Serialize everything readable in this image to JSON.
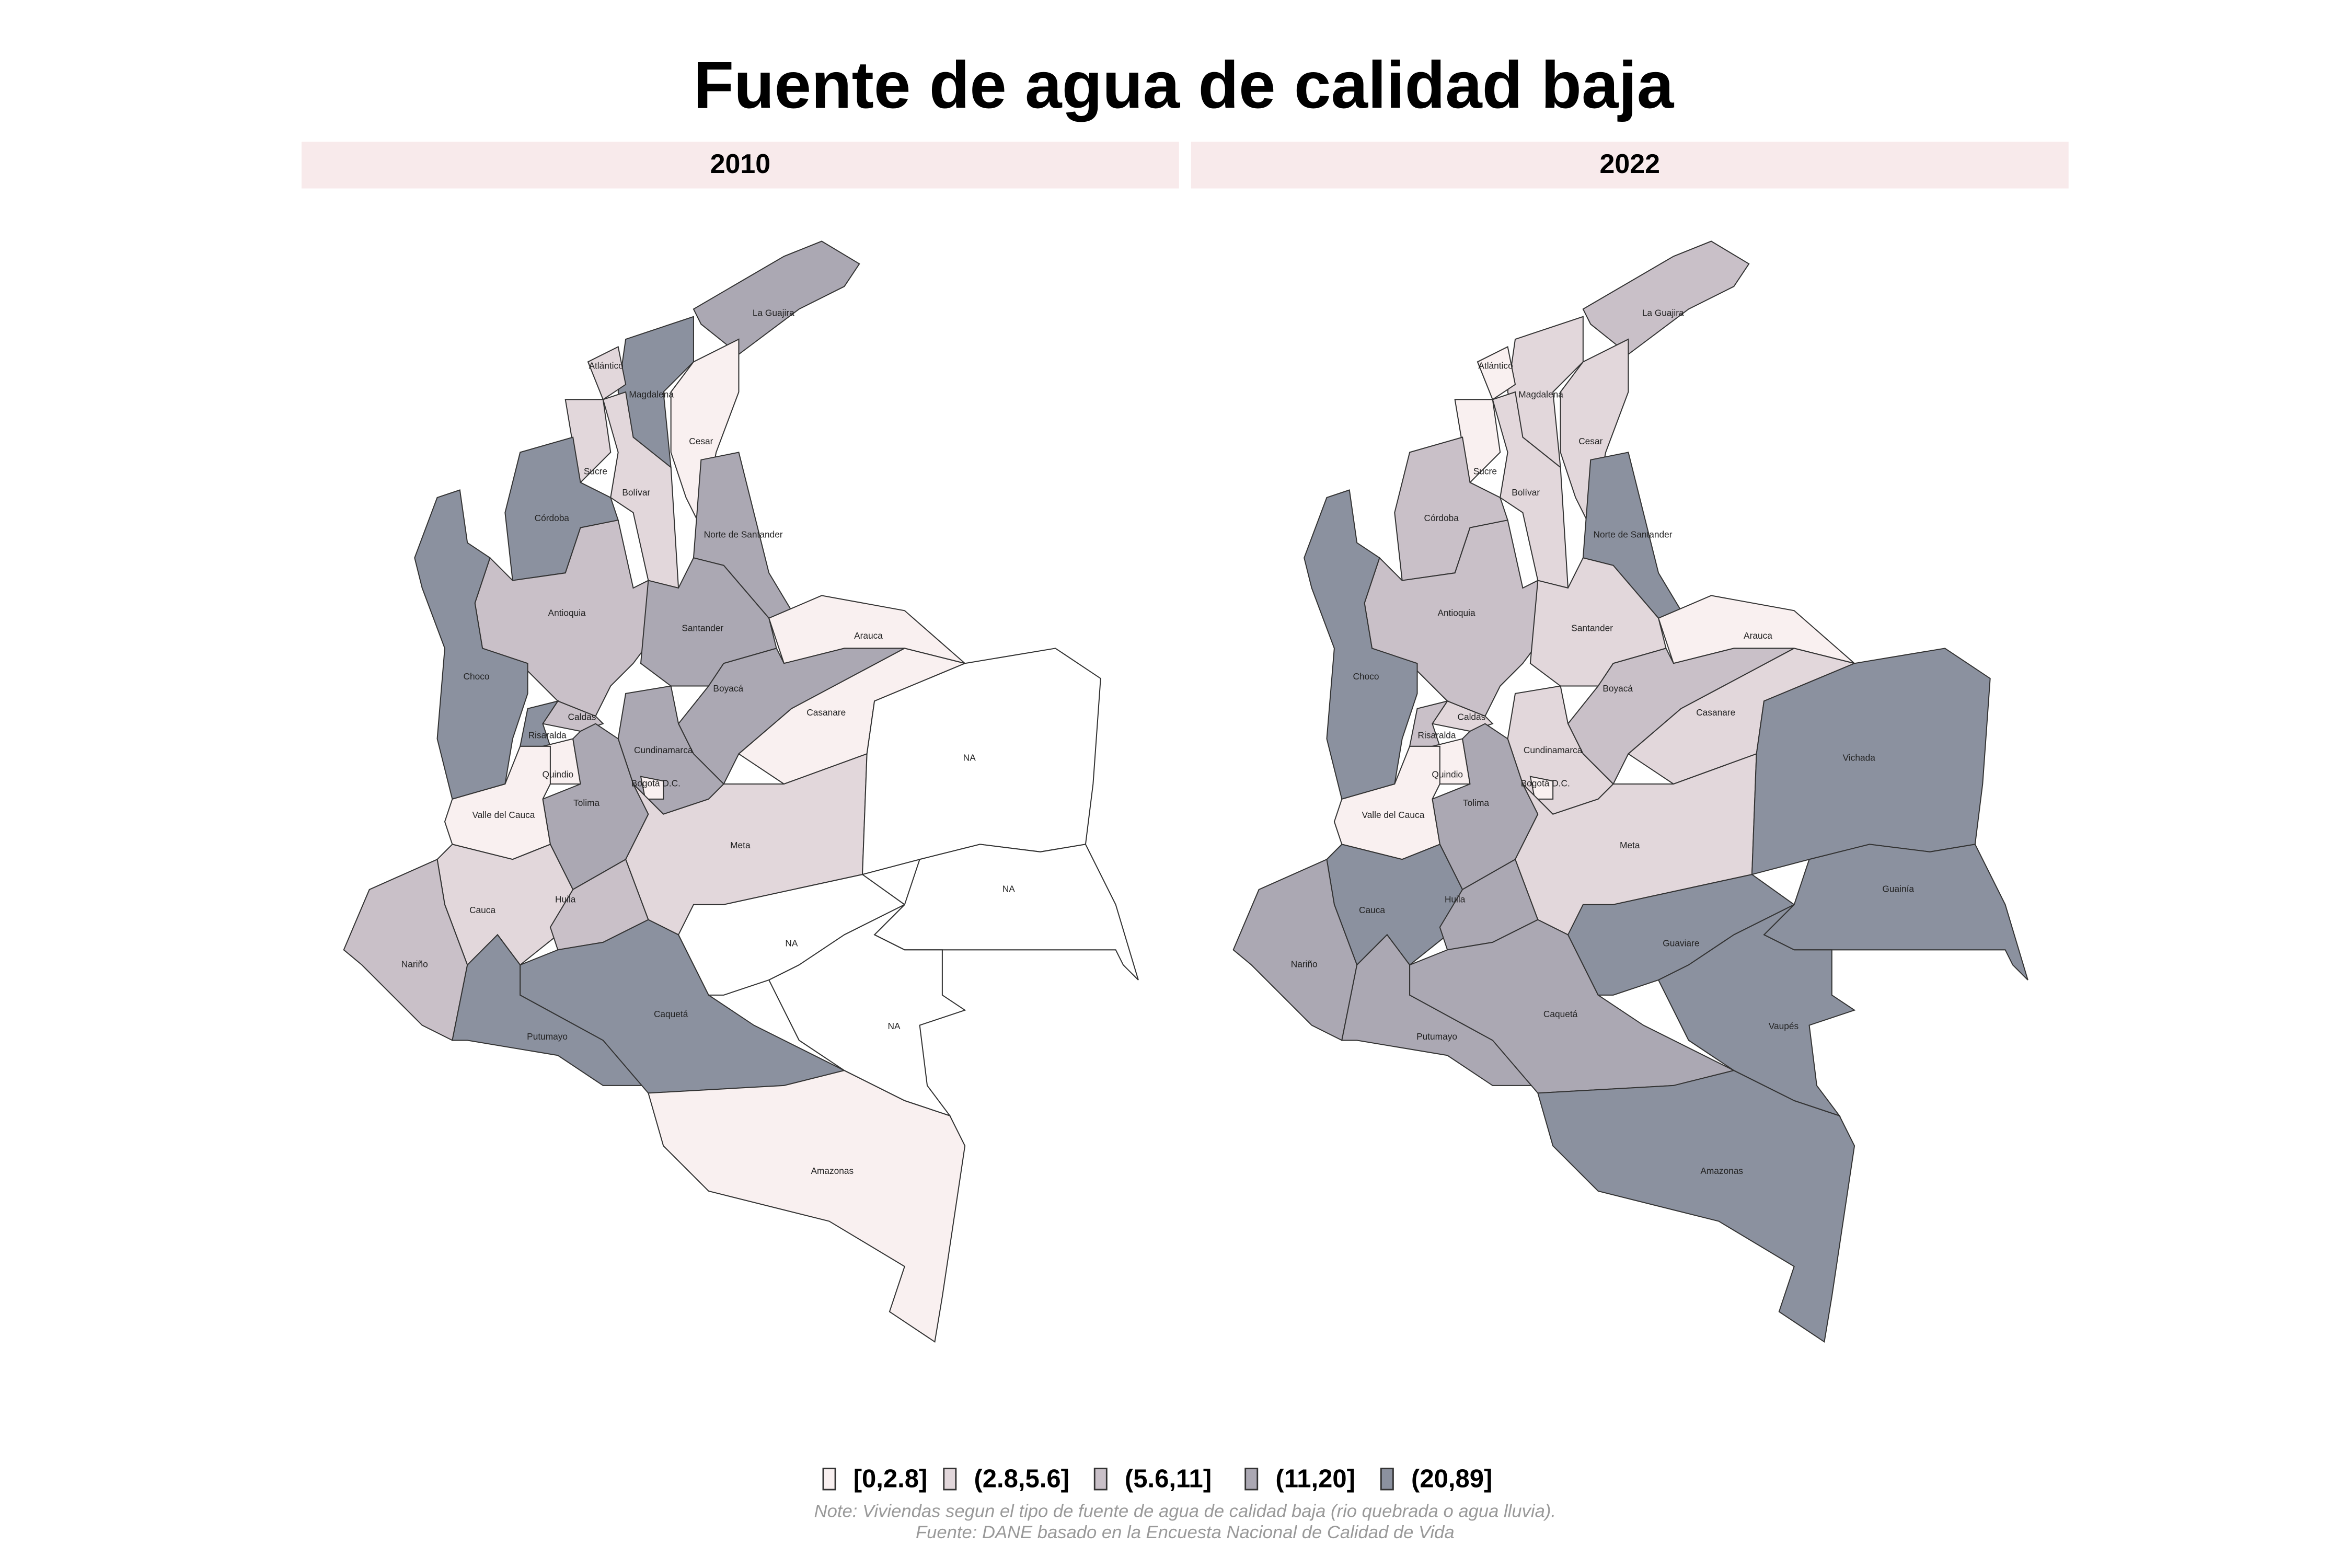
{
  "title": "Fuente de agua de calidad baja",
  "panels": [
    {
      "label": "2010",
      "regions": [
        {
          "label": "La Guajira",
          "fill": "#aba8b3"
        },
        {
          "label": "Magdalena",
          "fill": "#8b919f"
        },
        {
          "label": "Atlántico",
          "fill": "#e2d7db"
        },
        {
          "label": "Cesar",
          "fill": "#f9f0f0"
        },
        {
          "label": "Sucre",
          "fill": "#e2d7db"
        },
        {
          "label": "Bolívar",
          "fill": "#e2d7db"
        },
        {
          "label": "Córdoba",
          "fill": "#8b919f"
        },
        {
          "label": "Norte de Santander",
          "fill": "#aba8b3"
        },
        {
          "label": "Antioquia",
          "fill": "#c9c0c8"
        },
        {
          "label": "Choco",
          "fill": "#8b919f"
        },
        {
          "label": "Santander",
          "fill": "#aba8b3"
        },
        {
          "label": "Arauca",
          "fill": "#f9f0f0"
        },
        {
          "label": "Boyacá",
          "fill": "#aba8b3"
        },
        {
          "label": "Casanare",
          "fill": "#f9f0f0"
        },
        {
          "label": "Cundinamarca",
          "fill": "#aba8b3"
        },
        {
          "label": "Caldas",
          "fill": "#c9c0c8"
        },
        {
          "label": "Risaralda",
          "fill": "#8b919f"
        },
        {
          "label": "Quindio",
          "fill": "#f9f0f0"
        },
        {
          "label": "Tolima",
          "fill": "#aba8b3"
        },
        {
          "label": "Valle del Cauca",
          "fill": "#f9f0f0"
        },
        {
          "label": "Bogotá D.C.",
          "fill": "#f9f0f0"
        },
        {
          "label": "Meta",
          "fill": "#e2d7db"
        },
        {
          "label": "Cauca",
          "fill": "#e2d7db"
        },
        {
          "label": "Huila",
          "fill": "#c9c0c8"
        },
        {
          "label": "Nariño",
          "fill": "#c9c0c8"
        },
        {
          "label": "Putumayo",
          "fill": "#8b919f"
        },
        {
          "label": "Caquetá",
          "fill": "#8b919f"
        },
        {
          "label": "Amazonas",
          "fill": "#f9f0f0"
        },
        {
          "label": "NA",
          "fill": "#ffffff"
        },
        {
          "label": "NA",
          "fill": "#ffffff"
        },
        {
          "label": "NA",
          "fill": "#ffffff"
        },
        {
          "label": "NA",
          "fill": "#ffffff"
        }
      ]
    },
    {
      "label": "2022",
      "regions": [
        {
          "label": "La Guajira",
          "fill": "#c9c0c8"
        },
        {
          "label": "Magdalena",
          "fill": "#e2d7db"
        },
        {
          "label": "Atlántico",
          "fill": "#f9f0f0"
        },
        {
          "label": "Cesar",
          "fill": "#e2d7db"
        },
        {
          "label": "Sucre",
          "fill": "#f9f0f0"
        },
        {
          "label": "Bolívar",
          "fill": "#e2d7db"
        },
        {
          "label": "Córdoba",
          "fill": "#c9c0c8"
        },
        {
          "label": "Norte de Santander",
          "fill": "#8b919f"
        },
        {
          "label": "Antioquia",
          "fill": "#c9c0c8"
        },
        {
          "label": "Choco",
          "fill": "#8b919f"
        },
        {
          "label": "Santander",
          "fill": "#e2d7db"
        },
        {
          "label": "Arauca",
          "fill": "#f9f0f0"
        },
        {
          "label": "Boyacá",
          "fill": "#c9c0c8"
        },
        {
          "label": "Casanare",
          "fill": "#e2d7db"
        },
        {
          "label": "Cundinamarca",
          "fill": "#e2d7db"
        },
        {
          "label": "Caldas",
          "fill": "#e2d7db"
        },
        {
          "label": "Risaralda",
          "fill": "#c9c0c8"
        },
        {
          "label": "Quindio",
          "fill": "#f9f0f0"
        },
        {
          "label": "Tolima",
          "fill": "#aba8b3"
        },
        {
          "label": "Valle del Cauca",
          "fill": "#f9f0f0"
        },
        {
          "label": "Bogotá D.C.",
          "fill": "#f9f0f0"
        },
        {
          "label": "Meta",
          "fill": "#e2d7db"
        },
        {
          "label": "Cauca",
          "fill": "#8b919f"
        },
        {
          "label": "Huila",
          "fill": "#aba8b3"
        },
        {
          "label": "Nariño",
          "fill": "#aba8b3"
        },
        {
          "label": "Putumayo",
          "fill": "#aba8b3"
        },
        {
          "label": "Caquetá",
          "fill": "#aba8b3"
        },
        {
          "label": "Amazonas",
          "fill": "#8b919f"
        },
        {
          "label": "Guaviare",
          "fill": "#8b919f"
        },
        {
          "label": "Vichada",
          "fill": "#8b919f"
        },
        {
          "label": "Guainía",
          "fill": "#8b919f"
        },
        {
          "label": "Vaupés",
          "fill": "#8b919f"
        }
      ]
    }
  ],
  "legend": [
    {
      "label": "[0,2.8]",
      "color": "#f9f0f0"
    },
    {
      "label": "(2.8,5.6]",
      "color": "#e2d7db"
    },
    {
      "label": "(5.6,11]",
      "color": "#c9c0c8"
    },
    {
      "label": "(11,20]",
      "color": "#aba8b3"
    },
    {
      "label": "(20,89]",
      "color": "#8b919f"
    }
  ],
  "note": [
    "Note: Viviendas segun el tipo de fuente de agua de calidad baja (rio quebrada o agua lluvia).",
    "Fuente: DANE basado en la Encuesta Nacional de Calidad de Vida"
  ]
}
